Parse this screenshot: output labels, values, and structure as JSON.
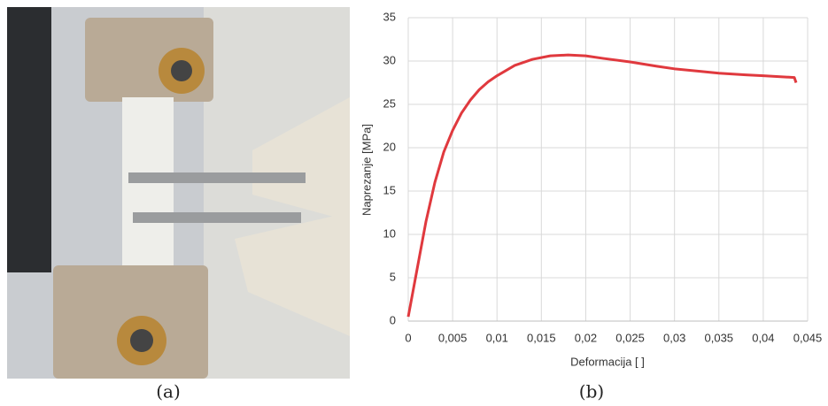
{
  "captions": [
    "(a)",
    "(b)"
  ],
  "chart_data": {
    "type": "line",
    "x_label": "Deformacija [ ]",
    "y_label": "Naprezanje [MPa]",
    "x": [
      0,
      0.001,
      0.002,
      0.003,
      0.004,
      0.005,
      0.006,
      0.007,
      0.008,
      0.009,
      0.01,
      0.012,
      0.014,
      0.016,
      0.018,
      0.02,
      0.022,
      0.025,
      0.028,
      0.03,
      0.033,
      0.035,
      0.038,
      0.04,
      0.0435,
      0.0437
    ],
    "series": [
      {
        "color": "#e0393e",
        "values": [
          0.5,
          6,
          11.5,
          16,
          19.5,
          22,
          24,
          25.5,
          26.7,
          27.6,
          28.3,
          29.5,
          30.2,
          30.6,
          30.7,
          30.6,
          30.3,
          29.9,
          29.4,
          29.1,
          28.8,
          28.6,
          28.4,
          28.3,
          28.1,
          27.5
        ]
      }
    ],
    "xlim": [
      0,
      0.045
    ],
    "ylim": [
      0,
      35
    ],
    "xticks": [
      0,
      {
        "value": 0.005,
        "label": "0,005"
      },
      {
        "value": 0.01,
        "label": "0,01"
      },
      {
        "value": 0.015,
        "label": "0,015"
      },
      {
        "value": 0.02,
        "label": "0,02"
      },
      {
        "value": 0.025,
        "label": "0,025"
      },
      {
        "value": 0.03,
        "label": "0,03"
      },
      {
        "value": 0.035,
        "label": "0,035"
      },
      {
        "value": 0.04,
        "label": "0,04"
      },
      {
        "value": 0.045,
        "label": "0,045"
      }
    ],
    "yticks": [
      0,
      5,
      10,
      15,
      20,
      25,
      30,
      35
    ],
    "grid": true
  }
}
